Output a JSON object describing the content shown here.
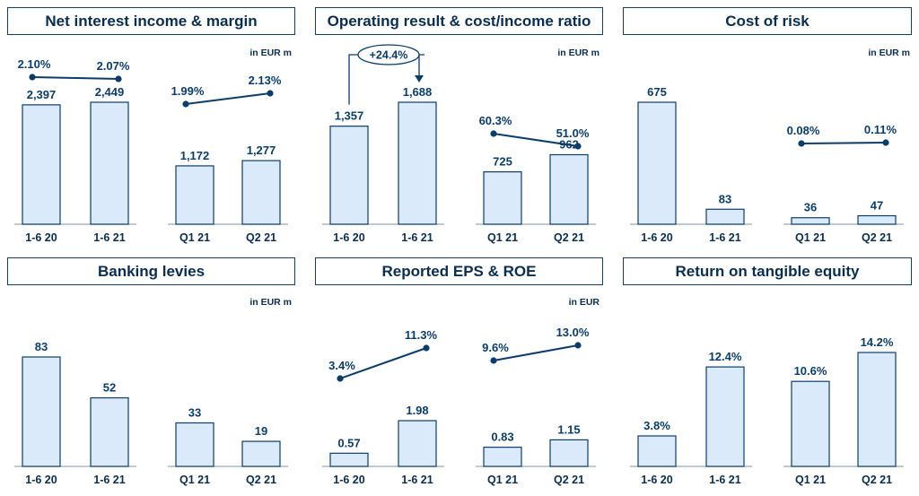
{
  "unit_eur_m": "in EUR m",
  "unit_eur": "in EUR",
  "colors": {
    "bar_fill": "#daeafb",
    "bar_stroke": "#0b3d6b",
    "line": "#0b3d6b",
    "text": "#0b3d6b"
  },
  "chart_data": [
    {
      "type": "bar+line",
      "title": "Net interest income & margin",
      "unit": "in EUR m",
      "groups": [
        {
          "categories": [
            "1-6 20",
            "1-6 21"
          ],
          "values": [
            2397,
            2449
          ],
          "value_labels": [
            "2,397",
            "2,449"
          ],
          "line_values": [
            2.1,
            2.07
          ],
          "line_labels": [
            "2.10%",
            "2.07%"
          ]
        },
        {
          "categories": [
            "Q1 21",
            "Q2 21"
          ],
          "values": [
            1172,
            1277
          ],
          "value_labels": [
            "1,172",
            "1,277"
          ],
          "line_values": [
            1.99,
            2.13
          ],
          "line_labels": [
            "1.99%",
            "2.13%"
          ]
        }
      ]
    },
    {
      "type": "bar+line",
      "title": "Operating result & cost/income ratio",
      "unit": "in EUR m",
      "annotation": "+24.4%",
      "groups": [
        {
          "categories": [
            "1-6 20",
            "1-6 21"
          ],
          "values": [
            1357,
            1688
          ],
          "value_labels": [
            "1,357",
            "1,688"
          ]
        },
        {
          "categories": [
            "Q1 21",
            "Q2 21"
          ],
          "values": [
            725,
            962
          ],
          "value_labels": [
            "725",
            "962"
          ],
          "line_values": [
            60.3,
            51.0
          ],
          "line_labels": [
            "60.3%",
            "51.0%"
          ]
        }
      ]
    },
    {
      "type": "bar+line",
      "title": "Cost of risk",
      "unit": "in EUR m",
      "groups": [
        {
          "categories": [
            "1-6 20",
            "1-6 21"
          ],
          "values": [
            675,
            83
          ],
          "value_labels": [
            "675",
            "83"
          ]
        },
        {
          "categories": [
            "Q1 21",
            "Q2 21"
          ],
          "values": [
            36,
            47
          ],
          "value_labels": [
            "36",
            "47"
          ],
          "line_values": [
            0.08,
            0.11
          ],
          "line_labels": [
            "0.08%",
            "0.11%"
          ]
        }
      ]
    },
    {
      "type": "bar",
      "title": "Banking levies",
      "unit": "in EUR m",
      "groups": [
        {
          "categories": [
            "1-6 20",
            "1-6 21"
          ],
          "values": [
            83,
            52
          ],
          "value_labels": [
            "83",
            "52"
          ]
        },
        {
          "categories": [
            "Q1 21",
            "Q2 21"
          ],
          "values": [
            33,
            19
          ],
          "value_labels": [
            "33",
            "19"
          ]
        }
      ]
    },
    {
      "type": "bar+line",
      "title": "Reported EPS & ROE",
      "unit": "in EUR",
      "groups": [
        {
          "categories": [
            "1-6 20",
            "1-6 21"
          ],
          "values": [
            0.57,
            1.98
          ],
          "value_labels": [
            "0.57",
            "1.98"
          ],
          "line_values": [
            3.4,
            11.3
          ],
          "line_labels": [
            "3.4%",
            "11.3%"
          ]
        },
        {
          "categories": [
            "Q1 21",
            "Q2 21"
          ],
          "values": [
            0.83,
            1.15
          ],
          "value_labels": [
            "0.83",
            "1.15"
          ],
          "line_values": [
            9.6,
            13.0
          ],
          "line_labels": [
            "9.6%",
            "13.0%"
          ]
        }
      ]
    },
    {
      "type": "bar",
      "title": "Return on tangible equity",
      "unit": "",
      "groups": [
        {
          "categories": [
            "1-6 20",
            "1-6 21"
          ],
          "values": [
            3.8,
            12.4
          ],
          "value_labels": [
            "3.8%",
            "12.4%"
          ]
        },
        {
          "categories": [
            "Q1 21",
            "Q2 21"
          ],
          "values": [
            10.6,
            14.2
          ],
          "value_labels": [
            "10.6%",
            "14.2%"
          ]
        }
      ]
    }
  ]
}
